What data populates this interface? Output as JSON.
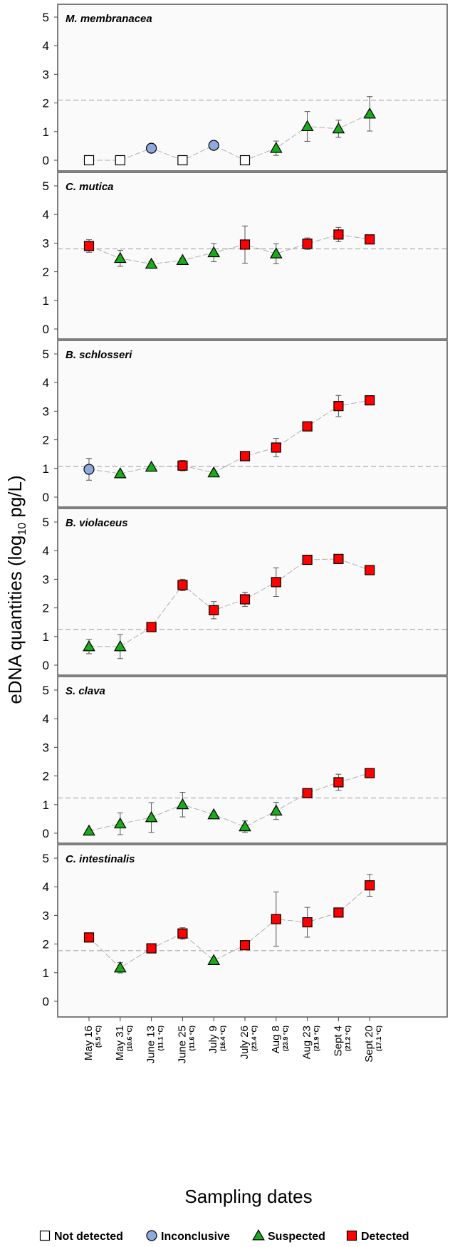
{
  "chart_data": {
    "type": "scatter",
    "ylabel": "eDNA quantities (log10 pg/L)",
    "xlabel": "Sampling dates",
    "x": [
      {
        "date": "May 16",
        "temp": "(5.5 °C)"
      },
      {
        "date": "May 31",
        "temp": "(10.6 °C)"
      },
      {
        "date": "June 13",
        "temp": "(11.1 °C)"
      },
      {
        "date": "June 25",
        "temp": "(11.6 °C)"
      },
      {
        "date": "July 9",
        "temp": "(16.4 °C)"
      },
      {
        "date": "July 26",
        "temp": "(23.4 °C)"
      },
      {
        "date": "Aug 8",
        "temp": "(23.9 °C)"
      },
      {
        "date": "Aug 23",
        "temp": "(21.9 °C)"
      },
      {
        "date": "Sept 4",
        "temp": "(21.2 °C)"
      },
      {
        "date": "Sept 20",
        "temp": "(17.1 °C)"
      }
    ],
    "ylim": [
      0,
      5
    ],
    "yticks": [
      "0",
      "1",
      "2",
      "3",
      "4",
      "5"
    ],
    "legend": [
      {
        "key": "N",
        "label": "Not detected",
        "marker": "square",
        "color": "#ffffff"
      },
      {
        "key": "I",
        "label": "Inconclusive",
        "marker": "circle",
        "color": "#8ea9db"
      },
      {
        "key": "S",
        "label": "Suspected",
        "marker": "triangle",
        "color": "#1aaa1a"
      },
      {
        "key": "D",
        "label": "Detected",
        "marker": "square",
        "color": "#ff0000"
      }
    ],
    "panels": [
      {
        "name": "M. membranacea",
        "threshold": 2.1,
        "values": [
          0,
          0,
          0.42,
          0,
          0.52,
          0,
          0.42,
          1.18,
          1.1,
          1.62
        ],
        "err": [
          0,
          0,
          0,
          0,
          0,
          0,
          0.25,
          0.52,
          0.3,
          0.6
        ],
        "status": [
          "N",
          "N",
          "I",
          "N",
          "I",
          "N",
          "S",
          "S",
          "S",
          "S"
        ]
      },
      {
        "name": "C. mutica",
        "threshold": 2.8,
        "values": [
          2.9,
          2.47,
          2.27,
          2.4,
          2.67,
          2.95,
          2.63,
          2.98,
          3.3,
          3.13
        ],
        "err": [
          0.22,
          0.28,
          0.08,
          0.08,
          0.32,
          0.65,
          0.35,
          0.2,
          0.25,
          0.12
        ],
        "status": [
          "D",
          "S",
          "S",
          "S",
          "S",
          "D",
          "S",
          "D",
          "D",
          "D"
        ]
      },
      {
        "name": "B. schlosseri",
        "threshold": 1.07,
        "values": [
          0.97,
          0.82,
          1.05,
          1.1,
          0.85,
          1.43,
          1.73,
          2.47,
          3.18,
          3.38
        ],
        "err": [
          0.38,
          0.08,
          0.06,
          0.18,
          0.05,
          0.1,
          0.32,
          0.08,
          0.37,
          0.1
        ],
        "status": [
          "I",
          "S",
          "S",
          "D",
          "S",
          "D",
          "D",
          "D",
          "D",
          "D"
        ]
      },
      {
        "name": "B. violaceus",
        "threshold": 1.25,
        "values": [
          0.65,
          0.65,
          1.33,
          2.8,
          1.92,
          2.3,
          2.9,
          3.68,
          3.71,
          3.32
        ],
        "err": [
          0.25,
          0.42,
          0.05,
          0.2,
          0.3,
          0.25,
          0.5,
          0.08,
          0.08,
          0.1
        ],
        "status": [
          "S",
          "S",
          "D",
          "D",
          "D",
          "D",
          "D",
          "D",
          "D",
          "D"
        ]
      },
      {
        "name": "S. clava",
        "threshold": 1.23,
        "values": [
          0.08,
          0.33,
          0.55,
          1.0,
          0.65,
          0.23,
          0.78,
          1.4,
          1.78,
          2.1
        ],
        "err": [
          0.05,
          0.38,
          0.52,
          0.43,
          0.05,
          0.2,
          0.3,
          0.05,
          0.28,
          0.15
        ],
        "status": [
          "S",
          "S",
          "S",
          "S",
          "S",
          "S",
          "S",
          "D",
          "D",
          "D"
        ]
      },
      {
        "name": "C. intestinalis",
        "threshold": 1.77,
        "values": [
          2.23,
          1.17,
          1.85,
          2.37,
          1.43,
          1.96,
          2.87,
          2.76,
          3.1,
          4.05
        ],
        "err": [
          0.05,
          0.18,
          0.05,
          0.2,
          0.05,
          0.1,
          0.95,
          0.52,
          0.13,
          0.38
        ],
        "status": [
          "D",
          "S",
          "D",
          "D",
          "S",
          "D",
          "D",
          "D",
          "D",
          "D"
        ]
      }
    ]
  }
}
